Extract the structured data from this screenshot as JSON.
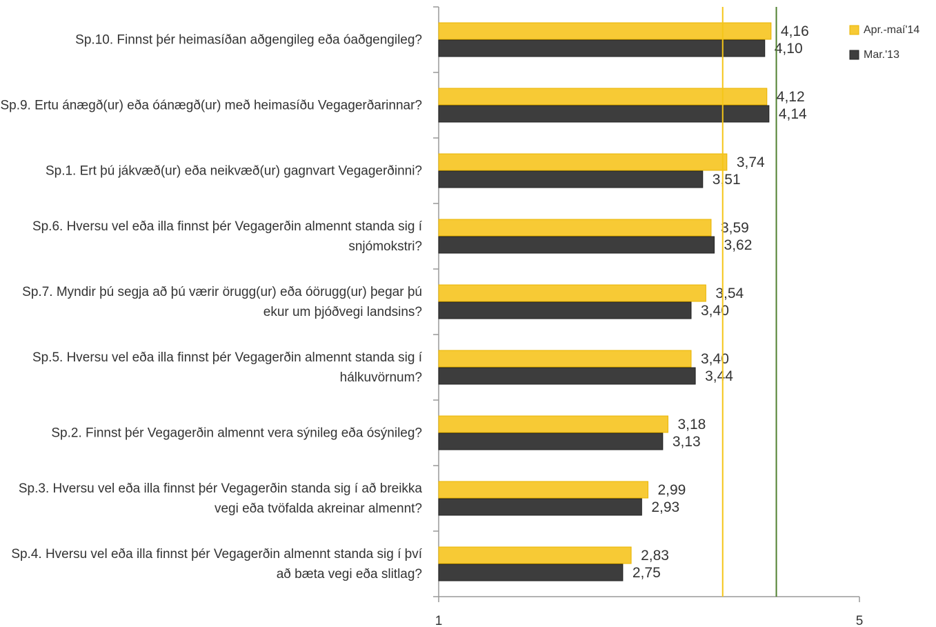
{
  "chart_data": {
    "type": "hbar",
    "categories": [
      "Sp.10. Finnst þér heimasíðan aðgengileg eða óaðgengileg?",
      "Sp.9. Ertu ánægð(ur) eða óánægð(ur) með heimasíðu Vegagerðarinnar?",
      "Sp.1. Ert þú jákvæð(ur) eða neikvæð(ur) gagnvart Vegagerðinni?",
      "Sp.6. Hversu vel eða illa finnst þér Vegagerðin almennt standa sig í snjómokstri?",
      "Sp.7. Myndir þú segja að þú værir örugg(ur) eða óörugg(ur) þegar þú ekur um þjóðvegi landsins?",
      "Sp.5. Hversu vel eða illa finnst þér Vegagerðin almennt standa sig í hálkuvörnum?",
      "Sp.2. Finnst þér Vegagerðin almennt vera sýnileg eða ósýnileg?",
      "Sp.3. Hversu vel eða illa finnst þér Vegagerðin standa sig í að breikka vegi eða tvöfalda akreinar almennt?",
      "Sp.4. Hversu vel eða illa finnst þér Vegagerðin almennt standa sig í því að bæta vegi eða slitlag?"
    ],
    "series": [
      {
        "name": "Apr.-maí'14",
        "color": "#f7ca35",
        "values": [
          4.16,
          4.12,
          3.74,
          3.59,
          3.54,
          3.4,
          3.18,
          2.99,
          2.83
        ],
        "value_labels": [
          "4,16",
          "4,12",
          "3,74",
          "3,59",
          "3,54",
          "3,40",
          "3,18",
          "2,99",
          "2,83"
        ]
      },
      {
        "name": "Mar.'13",
        "color": "#3d3d3d",
        "values": [
          4.1,
          4.14,
          3.51,
          3.62,
          3.4,
          3.44,
          3.13,
          2.93,
          2.75
        ],
        "value_labels": [
          "4,10",
          "4,14",
          "3,51",
          "3,62",
          "3,40",
          "3,44",
          "3,13",
          "2,93",
          "2,75"
        ]
      }
    ],
    "xlim": [
      1,
      5
    ],
    "xticks": [
      1,
      5
    ],
    "reference_lines": [
      {
        "value": 3.7,
        "color": "#f5c518"
      },
      {
        "value": 4.21,
        "color": "#4f7f2f"
      }
    ],
    "legend": "top-right"
  }
}
